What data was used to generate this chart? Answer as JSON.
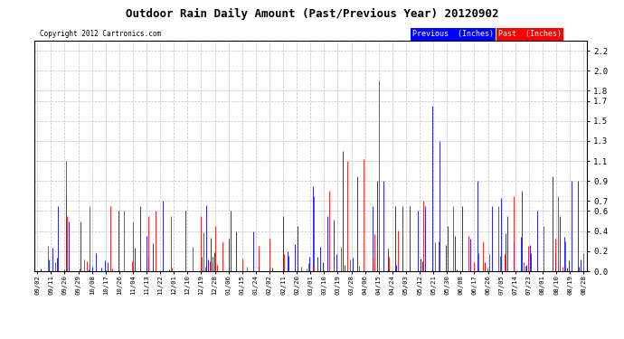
{
  "title": "Outdoor Rain Daily Amount (Past/Previous Year) 20120902",
  "copyright": "Copyright 2012 Cartronics.com",
  "legend_previous": "Previous  (Inches)",
  "legend_past": "Past  (Inches)",
  "color_previous": "#0000ff",
  "color_past": "#ff0000",
  "color_black": "#000000",
  "bg_color": "#ffffff",
  "grid_color": "#c0c0c0",
  "ylim": [
    0.0,
    2.3
  ],
  "yticks": [
    0.0,
    0.2,
    0.4,
    0.6,
    0.7,
    0.9,
    1.1,
    1.3,
    1.5,
    1.7,
    1.8,
    2.0,
    2.2
  ],
  "x_labels": [
    "09/02",
    "09/11",
    "09/20",
    "09/29",
    "10/08",
    "10/17",
    "10/26",
    "11/04",
    "11/13",
    "11/22",
    "12/01",
    "12/10",
    "12/19",
    "12/28",
    "01/06",
    "01/15",
    "01/24",
    "02/02",
    "02/11",
    "02/20",
    "03/01",
    "03/10",
    "03/19",
    "03/28",
    "04/06",
    "04/15",
    "04/24",
    "05/03",
    "05/12",
    "05/21",
    "05/30",
    "06/08",
    "06/17",
    "06/26",
    "07/05",
    "07/14",
    "07/23",
    "08/01",
    "08/10",
    "08/19",
    "08/28"
  ],
  "n_points": 366,
  "figsize": [
    6.9,
    3.75
  ],
  "dpi": 100
}
